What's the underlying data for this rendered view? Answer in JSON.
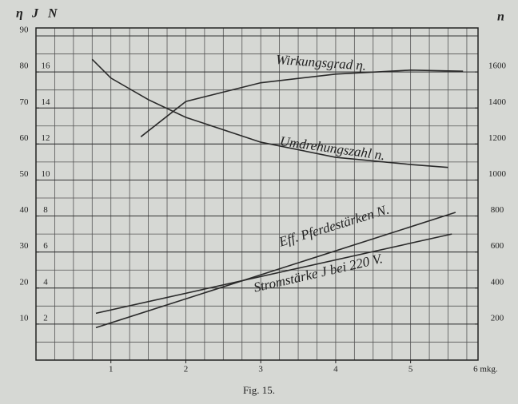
{
  "chart_data": {
    "type": "line",
    "caption": "Fig. 15.",
    "y_label": "η",
    "j_label": "J",
    "y2_label": "N",
    "y3_label": "n",
    "xlim": [
      0,
      5.9
    ],
    "xticks": [
      1,
      2,
      3,
      4,
      5,
      {
        "value": 6,
        "label": "6 mkg."
      }
    ],
    "ylim": [
      0,
      90
    ],
    "yticks": [
      10,
      20,
      30,
      40,
      50,
      60,
      70,
      80,
      90
    ],
    "y2lim": [
      0,
      18
    ],
    "y2ticks": [
      2,
      4,
      6,
      8,
      10,
      12,
      14,
      16
    ],
    "y3lim": [
      0,
      1800
    ],
    "y3ticks": [
      200,
      400,
      600,
      800,
      1000,
      1200,
      1400,
      1600
    ],
    "grid": true,
    "series": [
      {
        "name": "Wirkungsgrad η.",
        "color": "#2a2a2a",
        "axis": "y",
        "x": [
          1.4,
          2,
          3,
          4,
          5,
          5.7
        ],
        "values": [
          62,
          71.8,
          77,
          79.4,
          80.5,
          80.2
        ]
      },
      {
        "name": "Umdrehungszahl n.",
        "color": "#2a2a2a",
        "axis": "y3",
        "x": [
          0.75,
          1,
          1.5,
          2,
          3,
          4,
          5,
          5.5
        ],
        "values": [
          1670,
          1566,
          1446,
          1348,
          1210,
          1126,
          1086,
          1070
        ]
      },
      {
        "name": "Eff. Pferdestärken N.",
        "color": "#2a2a2a",
        "axis": "y2",
        "x": [
          0.8,
          5.6
        ],
        "values": [
          1.8,
          8.2
        ]
      },
      {
        "name": "Stromstärke J bei 220 V.",
        "color": "#2a2a2a",
        "axis": "y",
        "x": [
          0.8,
          5.55
        ],
        "values": [
          13,
          35
        ]
      }
    ]
  }
}
